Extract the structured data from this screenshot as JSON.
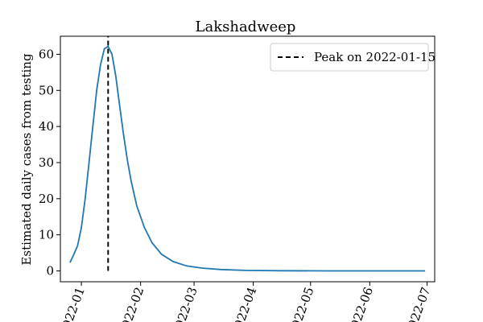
{
  "chart_data": {
    "type": "line",
    "title": "Lakshadweep",
    "xlabel": "",
    "ylabel": "Estimated daily cases from testing",
    "x_axis": {
      "type": "date",
      "range": [
        "2021-12-21",
        "2022-07-05"
      ],
      "ticks": [
        {
          "date": "2022-01-01",
          "label": "2022-01"
        },
        {
          "date": "2022-02-01",
          "label": "2022-02"
        },
        {
          "date": "2022-03-01",
          "label": "2022-03"
        },
        {
          "date": "2022-04-01",
          "label": "2022-04"
        },
        {
          "date": "2022-05-01",
          "label": "2022-05"
        },
        {
          "date": "2022-06-01",
          "label": "2022-06"
        },
        {
          "date": "2022-07-01",
          "label": "2022-07"
        }
      ],
      "tick_label_rotation": "about 70 degrees"
    },
    "y_axis": {
      "range": [
        -3,
        65
      ],
      "ticks": [
        0,
        10,
        20,
        30,
        40,
        50,
        60
      ]
    },
    "grid": false,
    "legend": {
      "placement": "top-right"
    },
    "colors": {
      "series": "#1f77b4",
      "peak_line": "#000000"
    },
    "series": [
      {
        "style": "solid",
        "points": [
          {
            "date": "2021-12-26",
            "y": 2.3
          },
          {
            "date": "2021-12-28",
            "y": 4.5
          },
          {
            "date": "2021-12-30",
            "y": 7.0
          },
          {
            "date": "2022-01-01",
            "y": 12.0
          },
          {
            "date": "2022-01-03",
            "y": 20.0
          },
          {
            "date": "2022-01-05",
            "y": 30.0
          },
          {
            "date": "2022-01-07",
            "y": 40.0
          },
          {
            "date": "2022-01-09",
            "y": 50.0
          },
          {
            "date": "2022-01-11",
            "y": 57.0
          },
          {
            "date": "2022-01-13",
            "y": 61.5
          },
          {
            "date": "2022-01-15",
            "y": 62.2
          },
          {
            "date": "2022-01-17",
            "y": 60.0
          },
          {
            "date": "2022-01-19",
            "y": 54.0
          },
          {
            "date": "2022-01-21",
            "y": 46.0
          },
          {
            "date": "2022-01-23",
            "y": 38.0
          },
          {
            "date": "2022-01-25",
            "y": 31.0
          },
          {
            "date": "2022-01-27",
            "y": 25.0
          },
          {
            "date": "2022-01-30",
            "y": 18.0
          },
          {
            "date": "2022-02-03",
            "y": 12.0
          },
          {
            "date": "2022-02-07",
            "y": 7.8
          },
          {
            "date": "2022-02-12",
            "y": 4.6
          },
          {
            "date": "2022-02-18",
            "y": 2.6
          },
          {
            "date": "2022-02-25",
            "y": 1.4
          },
          {
            "date": "2022-03-05",
            "y": 0.8
          },
          {
            "date": "2022-03-15",
            "y": 0.4
          },
          {
            "date": "2022-03-28",
            "y": 0.15
          },
          {
            "date": "2022-04-15",
            "y": 0.05
          },
          {
            "date": "2022-05-10",
            "y": 0.0
          },
          {
            "date": "2022-06-10",
            "y": 0.0
          },
          {
            "date": "2022-06-30",
            "y": 0.0
          }
        ]
      },
      {
        "name": "Peak on 2022-01-15",
        "style": "dashed",
        "points": [
          {
            "date": "2022-01-15",
            "y": 0
          },
          {
            "date": "2022-01-15",
            "y": 65
          }
        ]
      }
    ]
  }
}
